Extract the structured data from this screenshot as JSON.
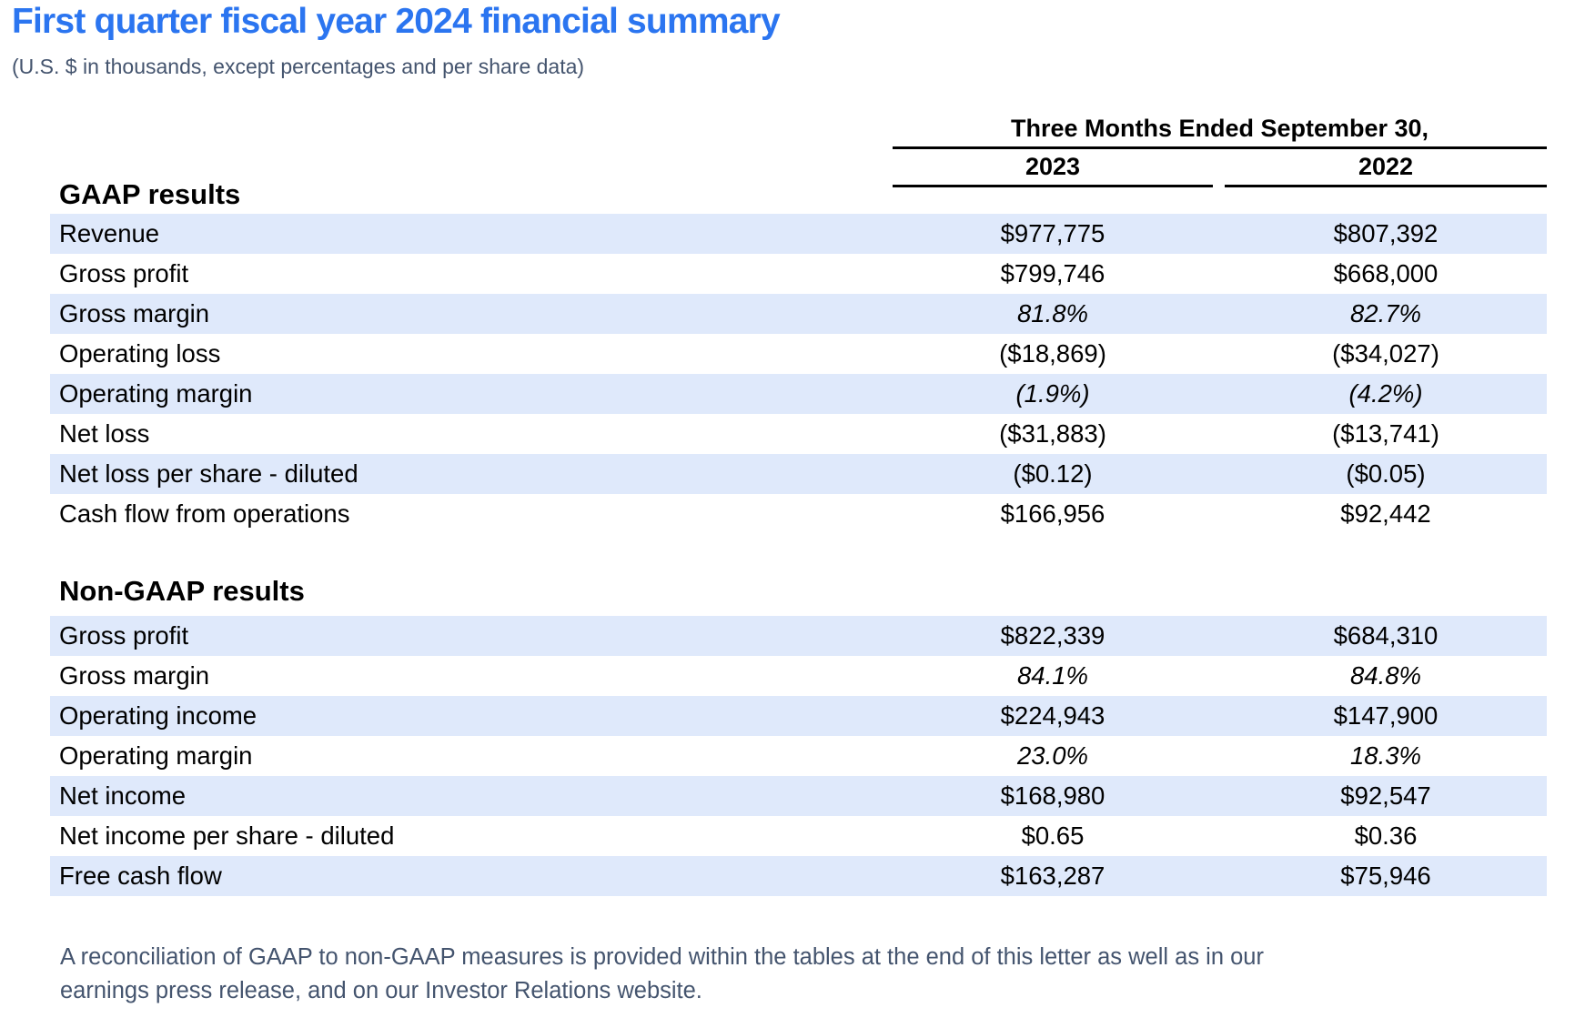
{
  "page": {
    "title": "First quarter fiscal year 2024 financial summary",
    "subtitle": "(U.S. $ in thousands, except percentages and per share data)",
    "footnote_line1": "A reconciliation of GAAP to non-GAAP measures is provided within the tables at the end of this letter as well as in our",
    "footnote_line2": "earnings press release, and on our Investor Relations website."
  },
  "table": {
    "period_header": "Three Months Ended September 30,",
    "columns": [
      "2023",
      "2022"
    ],
    "sections": [
      {
        "heading": "GAAP results",
        "rows": [
          {
            "label": "Revenue",
            "v2023": "$977,775",
            "v2022": "$807,392",
            "italic": false
          },
          {
            "label": "Gross profit",
            "v2023": "$799,746",
            "v2022": "$668,000",
            "italic": false
          },
          {
            "label": "Gross margin",
            "v2023": "81.8%",
            "v2022": "82.7%",
            "italic": true
          },
          {
            "label": "Operating loss",
            "v2023": "($18,869)",
            "v2022": "($34,027)",
            "italic": false
          },
          {
            "label": "Operating margin",
            "v2023": "(1.9%)",
            "v2022": "(4.2%)",
            "italic": true
          },
          {
            "label": "Net loss",
            "v2023": "($31,883)",
            "v2022": "($13,741)",
            "italic": false
          },
          {
            "label": "Net loss per share - diluted",
            "v2023": "($0.12)",
            "v2022": "($0.05)",
            "italic": false
          },
          {
            "label": "Cash flow from operations",
            "v2023": "$166,956",
            "v2022": "$92,442",
            "italic": false
          }
        ]
      },
      {
        "heading": "Non-GAAP results",
        "rows": [
          {
            "label": "Gross profit",
            "v2023": "$822,339",
            "v2022": "$684,310",
            "italic": false
          },
          {
            "label": "Gross margin",
            "v2023": "84.1%",
            "v2022": "84.8%",
            "italic": true
          },
          {
            "label": "Operating income",
            "v2023": "$224,943",
            "v2022": "$147,900",
            "italic": false
          },
          {
            "label": "Operating margin",
            "v2023": "23.0%",
            "v2022": "18.3%",
            "italic": true
          },
          {
            "label": "Net income",
            "v2023": "$168,980",
            "v2022": "$92,547",
            "italic": false
          },
          {
            "label": "Net income per share - diluted",
            "v2023": "$0.65",
            "v2022": "$0.36",
            "italic": false
          },
          {
            "label": "Free cash flow",
            "v2023": "$163,287",
            "v2022": "$75,946",
            "italic": false
          }
        ]
      }
    ]
  },
  "colors": {
    "title_blue": "#2b75f0",
    "slate_text": "#44546e",
    "row_highlight": "#dfe9fb",
    "table_text": "#000000",
    "rule_line": "#000000"
  }
}
